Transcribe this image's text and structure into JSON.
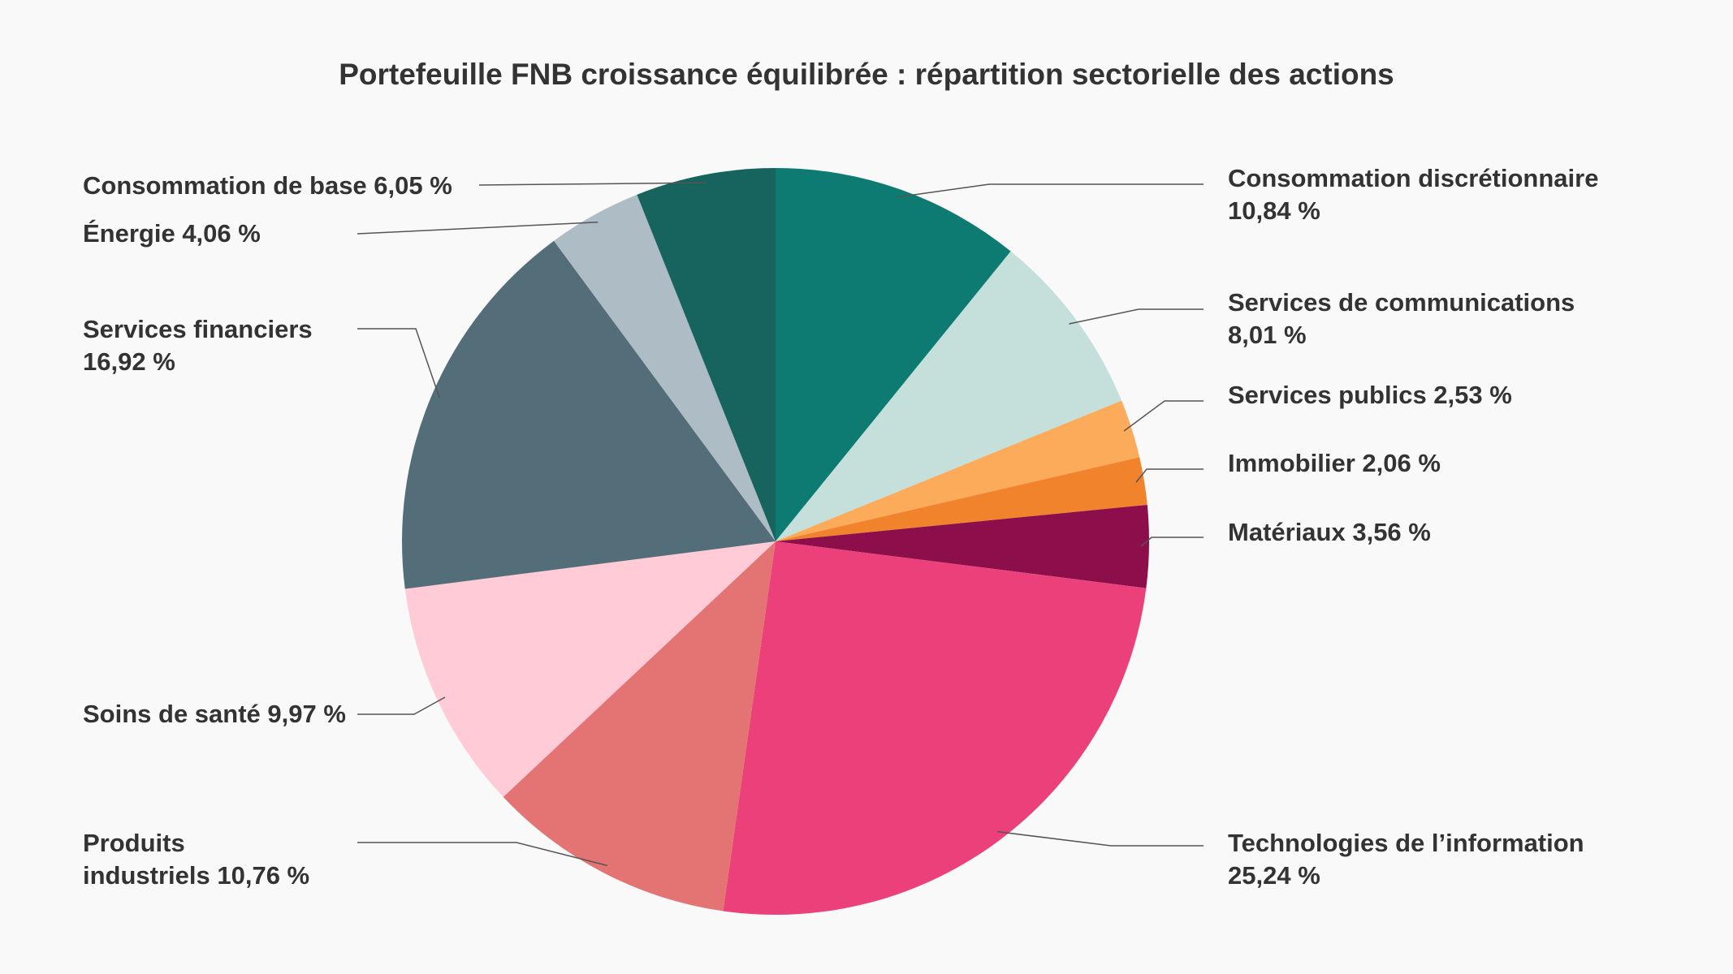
{
  "chart_data": {
    "type": "pie",
    "title": "Portefeuille FNB croissance équilibrée : répartition sectorielle des actions",
    "slices": [
      {
        "label": "Consommation discrétionnaire",
        "value": 10.84,
        "text": [
          "Consommation discrétionnaire",
          "10,84 %"
        ],
        "color": "#0e7b73"
      },
      {
        "label": "Services de communications",
        "value": 8.01,
        "text": [
          "Services de communications",
          "8,01 %"
        ],
        "color": "#c5dfdb"
      },
      {
        "label": "Services publics",
        "value": 2.53,
        "text": [
          "Services publics 2,53 %"
        ],
        "color": "#fcab5a"
      },
      {
        "label": "Immobilier",
        "value": 2.06,
        "text": [
          "Immobilier 2,06 %"
        ],
        "color": "#f0832c"
      },
      {
        "label": "Matériaux",
        "value": 3.56,
        "text": [
          "Matériaux 3,56 %"
        ],
        "color": "#8c0f4b"
      },
      {
        "label": "Technologies de l’information",
        "value": 25.24,
        "text": [
          "Technologies de l’information",
          "25,24 %"
        ],
        "color": "#ec407a"
      },
      {
        "label": "Produits industriels",
        "value": 10.76,
        "text": [
          "Produits",
          "industriels 10,76 %"
        ],
        "color": "#e47373"
      },
      {
        "label": "Soins de santé",
        "value": 9.97,
        "text": [
          "Soins de santé 9,97 %"
        ],
        "color": "#fecbd6"
      },
      {
        "label": "Services financiers",
        "value": 16.92,
        "text": [
          "Services financiers",
          "16,92 %"
        ],
        "color": "#536e79"
      },
      {
        "label": "Énergie",
        "value": 4.06,
        "text": [
          "Énergie 4,06 %"
        ],
        "color": "#aebcc5"
      },
      {
        "label": "Consommation de base",
        "value": 6.05,
        "text": [
          "Consommation de base 6,05 %"
        ],
        "color": "#17645e"
      }
    ],
    "start": "12 o'clock",
    "direction": "clockwise",
    "legend": "none"
  }
}
